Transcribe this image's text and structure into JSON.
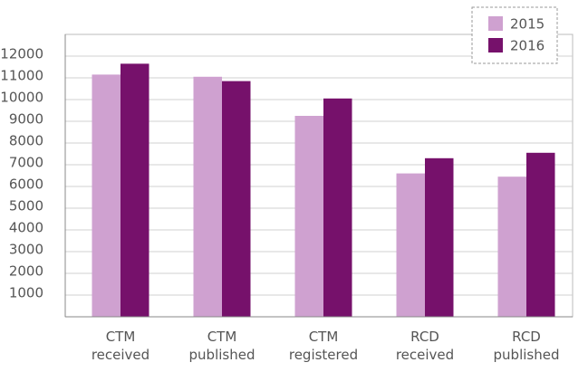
{
  "chart_data": {
    "type": "bar",
    "categories": [
      "CTM received",
      "CTM published",
      "CTM registered",
      "RCD received",
      "RCD published"
    ],
    "series": [
      {
        "name": "2015",
        "color": "#cfa1d0",
        "values": [
          11150,
          11050,
          9250,
          6600,
          6450
        ]
      },
      {
        "name": "2016",
        "color": "#76116b",
        "values": [
          11650,
          10850,
          10050,
          7300,
          7550
        ]
      }
    ],
    "ylim": [
      0,
      13000
    ],
    "yticks": [
      1000,
      2000,
      3000,
      4000,
      5000,
      6000,
      7000,
      8000,
      9000,
      10000,
      11000,
      12000
    ],
    "grid": true,
    "legend": "top-right"
  }
}
